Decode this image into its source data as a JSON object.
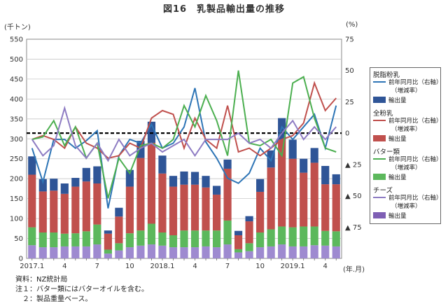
{
  "figure": {
    "title": "図16　乳製品輸出量の推移",
    "left_unit": "(千トン)",
    "right_unit": "(%)",
    "x_unit": "(年.月)"
  },
  "notes": {
    "source": "資料：NZ統計局",
    "note1": "注１：バター類にはバターオイルを含む。",
    "note2": "　２：製品重量ベース。"
  },
  "legend": {
    "groups": [
      {
        "name": "脱脂粉乳",
        "line_label": "前年同月比（右軸）",
        "line_sub": "（増減率）",
        "bar_label": "輸出量",
        "line_color": "#2e75b6",
        "bar_color": "#2f5597"
      },
      {
        "name": "全粉乳",
        "line_label": "前年同月比（右軸）",
        "line_sub": "（増減率）",
        "bar_label": "輸出量",
        "line_color": "#c0504d",
        "bar_color": "#c0504d"
      },
      {
        "name": "バター類",
        "line_label": "前年同月比（右軸）",
        "line_sub": "（増減率）",
        "bar_label": "輸出量",
        "line_color": "#4caf50",
        "bar_color": "#5cb85c"
      },
      {
        "name": "チーズ",
        "line_label": "前年同月比（右軸）",
        "line_sub": "（増減率）",
        "bar_label": "輸出量",
        "line_color": "#8e7cc3",
        "bar_color": "#7e5fb4"
      }
    ]
  },
  "chart_data": {
    "type": "bar",
    "stacked": true,
    "categories": [
      "2017.1",
      "2",
      "3",
      "4",
      "5",
      "6",
      "7",
      "8",
      "9",
      "10",
      "11",
      "12",
      "2018.1",
      "2",
      "3",
      "4",
      "5",
      "6",
      "7",
      "8",
      "9",
      "10",
      "11",
      "12",
      "2019.1",
      "2",
      "3",
      "4",
      "5"
    ],
    "x_tick_labels": [
      "2017.1",
      "",
      "",
      "4",
      "",
      "",
      "7",
      "",
      "",
      "10",
      "",
      "",
      "2018.1",
      "",
      "",
      "4",
      "",
      "",
      "7",
      "",
      "",
      "10",
      "",
      "",
      "2019.1",
      "",
      "",
      "4",
      ""
    ],
    "ylim_left": [
      0,
      550
    ],
    "y_ticks_left": [
      "0",
      "50",
      "100",
      "150",
      "200",
      "250",
      "300",
      "350",
      "400",
      "450",
      "500",
      "550"
    ],
    "ylim_right": [
      -100,
      75
    ],
    "y_ticks_right": [
      "▲ 75",
      "▲ 50",
      "▲ 25",
      "0",
      "25",
      "50",
      "75"
    ],
    "series_bars": [
      {
        "name": "チーズ",
        "color": "#9e8ad0",
        "values": [
          33,
          28,
          28,
          30,
          30,
          30,
          35,
          12,
          20,
          28,
          32,
          35,
          32,
          28,
          28,
          28,
          30,
          28,
          35,
          15,
          18,
          28,
          30,
          35,
          30,
          30,
          33,
          32,
          30
        ]
      },
      {
        "name": "バター類",
        "color": "#5cb85c",
        "values": [
          45,
          37,
          37,
          32,
          33,
          38,
          50,
          10,
          18,
          35,
          38,
          52,
          33,
          30,
          42,
          42,
          40,
          42,
          60,
          8,
          20,
          37,
          43,
          45,
          48,
          50,
          47,
          37,
          38
        ]
      },
      {
        "name": "全粉乳",
        "color": "#c0504d",
        "values": [
          132,
          103,
          105,
          100,
          117,
          125,
          103,
          40,
          67,
          117,
          182,
          203,
          148,
          122,
          115,
          115,
          108,
          90,
          130,
          35,
          55,
          102,
          155,
          218,
          172,
          135,
          160,
          117,
          118
        ]
      },
      {
        "name": "脱脂粉乳",
        "color": "#2f5597",
        "values": [
          46,
          31,
          30,
          26,
          22,
          34,
          43,
          8,
          22,
          42,
          43,
          53,
          45,
          27,
          33,
          32,
          29,
          22,
          23,
          11,
          13,
          32,
          43,
          54,
          48,
          35,
          37,
          46,
          25
        ]
      }
    ],
    "series_lines": [
      {
        "name": "脱脂粉乳",
        "color": "#2e75b6",
        "values": [
          -12,
          -39,
          -5,
          -5,
          -12,
          -6,
          2,
          -60,
          -18,
          -5,
          -8,
          7,
          -12,
          -8,
          5,
          36,
          -7,
          -20,
          -36,
          -40,
          -32,
          -12,
          -22,
          5,
          -5,
          5,
          15,
          -12,
          22
        ]
      },
      {
        "name": "全粉乳",
        "color": "#c0504d",
        "values": [
          -5,
          -2,
          -5,
          -12,
          5,
          -8,
          -12,
          -20,
          -18,
          -8,
          -12,
          12,
          18,
          15,
          -12,
          12,
          -5,
          -12,
          22,
          -15,
          -12,
          -18,
          -12,
          -5,
          -2,
          8,
          40,
          18,
          28
        ]
      },
      {
        "name": "バター類",
        "color": "#4caf50",
        "values": [
          -5,
          -3,
          10,
          -10,
          5,
          -20,
          -8,
          -52,
          -20,
          -32,
          -10,
          -8,
          -12,
          -5,
          22,
          5,
          30,
          10,
          -18,
          50,
          -8,
          -10,
          -5,
          -18,
          40,
          45,
          12,
          -12,
          -15
        ]
      },
      {
        "name": "チーズ",
        "color": "#8e7cc3",
        "values": [
          -5,
          -18,
          -10,
          20,
          -10,
          -20,
          -8,
          -22,
          -5,
          -18,
          -12,
          -8,
          -15,
          -10,
          -5,
          -18,
          -5,
          -5,
          -5,
          0,
          -8,
          -5,
          -12,
          0,
          10,
          -5,
          5,
          -5,
          5
        ]
      }
    ],
    "zero_line": {
      "style": "dashed",
      "color": "#000000"
    },
    "grid": true
  }
}
